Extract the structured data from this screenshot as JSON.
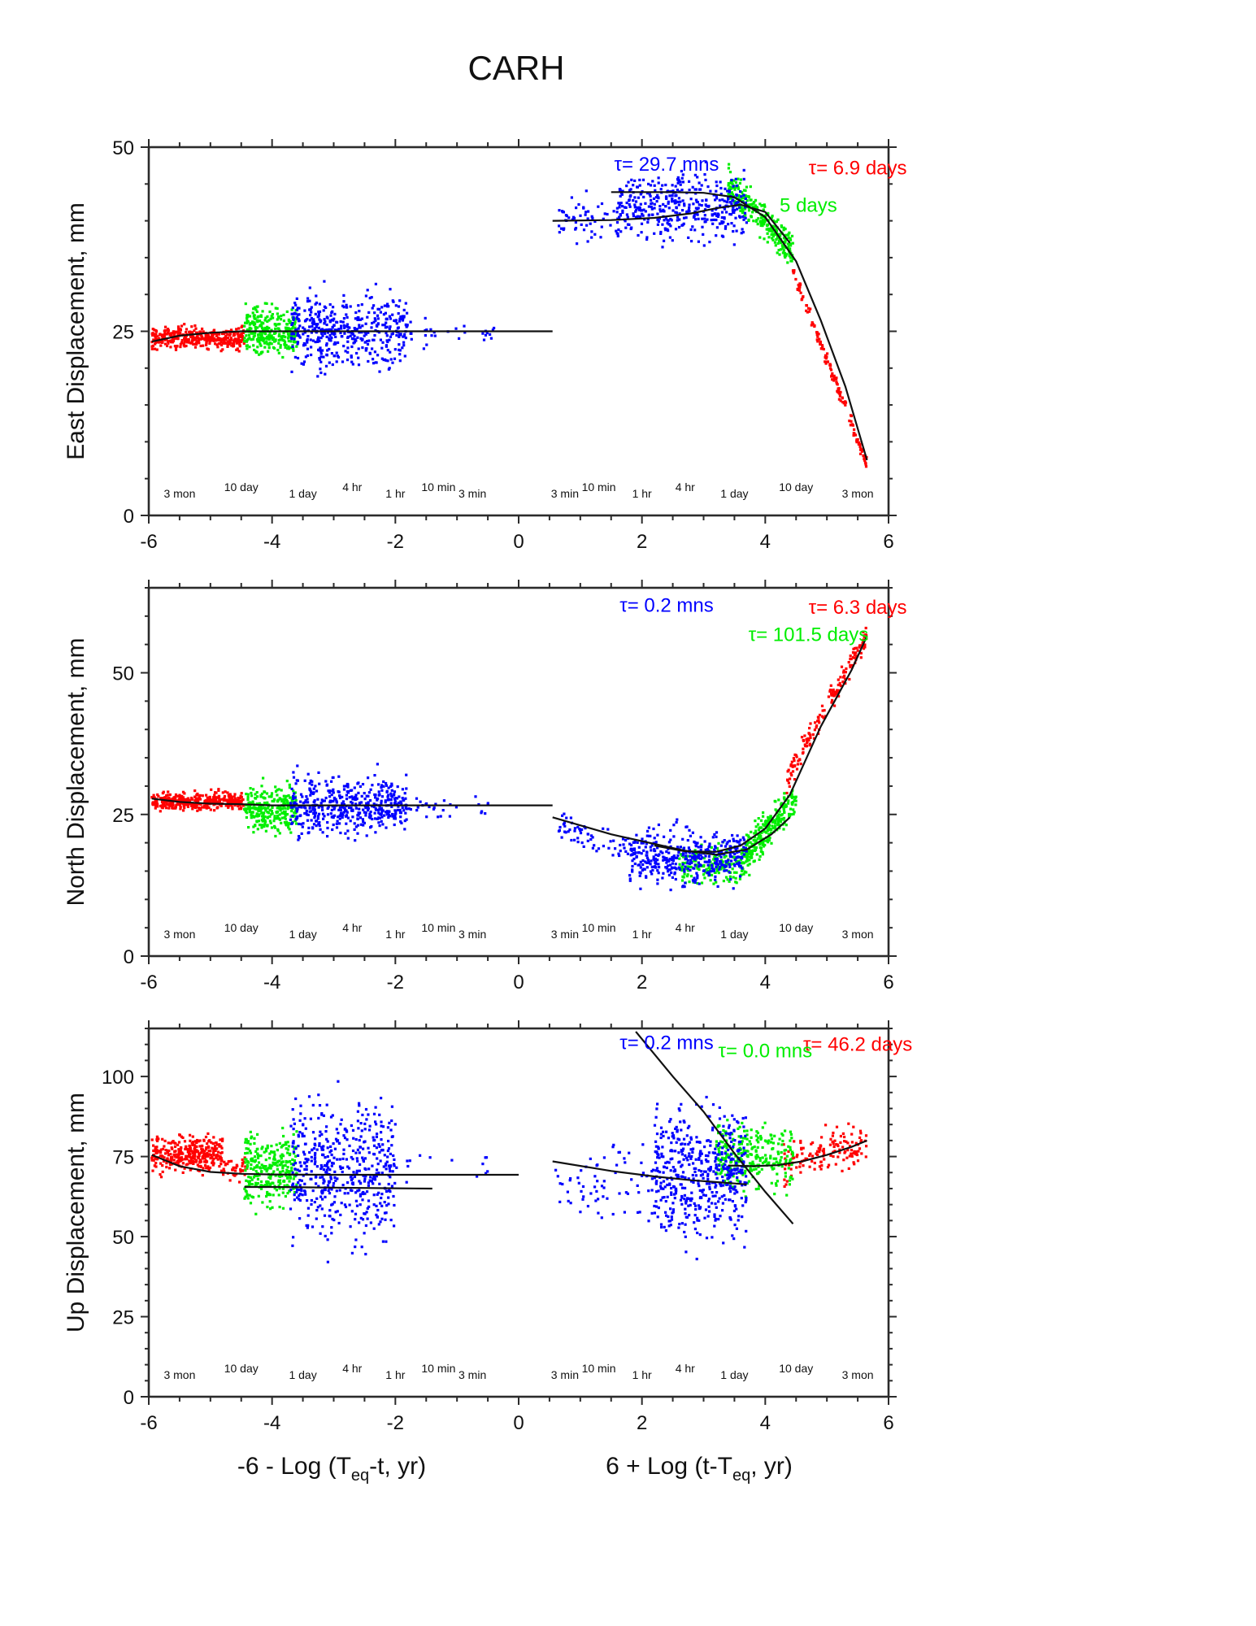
{
  "title": "CARH",
  "xlabels": {
    "left": {
      "main": "-6 - Log (T",
      "sub": "eq",
      "end": "-t, yr)"
    },
    "right": {
      "main": "6 + Log (t-T",
      "sub": "eq",
      "end": ", yr)"
    }
  },
  "colors": {
    "red": "#ff0000",
    "green": "#00ee00",
    "blue": "#0000ff",
    "fit": "#111111",
    "frame": "#2b2b2b"
  },
  "time_labels": [
    {
      "text": "3 mon",
      "x": -5.5,
      "raised": false
    },
    {
      "text": "10 day",
      "x": -4.5,
      "raised": true
    },
    {
      "text": "1 day",
      "x": -3.5,
      "raised": false
    },
    {
      "text": "4 hr",
      "x": -2.7,
      "raised": true
    },
    {
      "text": "1 hr",
      "x": -2.0,
      "raised": false
    },
    {
      "text": "10 min",
      "x": -1.3,
      "raised": true
    },
    {
      "text": "3 min",
      "x": -0.75,
      "raised": false
    },
    {
      "text": "3 min",
      "x": 0.75,
      "raised": false
    },
    {
      "text": "10 min",
      "x": 1.3,
      "raised": true
    },
    {
      "text": "1 hr",
      "x": 2.0,
      "raised": false
    },
    {
      "text": "4 hr",
      "x": 2.7,
      "raised": true
    },
    {
      "text": "1 day",
      "x": 3.5,
      "raised": false
    },
    {
      "text": "10 day",
      "x": 4.5,
      "raised": true
    },
    {
      "text": "3 mon",
      "x": 5.5,
      "raised": false
    }
  ],
  "chart_data": [
    {
      "type": "scatter",
      "ylabel": "East Displacement, mm",
      "xlim": [
        -6,
        6
      ],
      "ylim": [
        0,
        50
      ],
      "xticks": [
        -6,
        -4,
        -2,
        0,
        2,
        4,
        6
      ],
      "yticks": [
        0,
        25,
        50
      ],
      "tau_labels": [
        {
          "text": "τ= 29.7 mns",
          "color": "blue",
          "x": 2.4,
          "y": 46.8
        },
        {
          "text": "τ= 6.9 days",
          "color": "red",
          "x": 5.5,
          "y": 46.3
        },
        {
          "text": "5 days",
          "color": "green",
          "x": 4.7,
          "y": 41.2
        }
      ],
      "series": [
        {
          "color": "red",
          "segments": [
            {
              "x": [
                -5.95,
                -4.45
              ],
              "c": 24.1,
              "spread": 1.4,
              "n": 380
            },
            {
              "x": [
                4.45,
                5.65
              ],
              "line": [
                33,
                7
              ],
              "spread": 0.9,
              "n": 150
            }
          ]
        },
        {
          "color": "green",
          "segments": [
            {
              "x": [
                -4.45,
                -3.6
              ],
              "c": 25,
              "spread": 3.0,
              "n": 280
            },
            {
              "x": [
                3.4,
                4.45
              ],
              "line": [
                45,
                36
              ],
              "spread": 2.4,
              "n": 280
            }
          ]
        },
        {
          "color": "blue",
          "segments": [
            {
              "x": [
                -3.7,
                -1.8
              ],
              "c": 25,
              "spread": 4.6,
              "n": 460
            },
            {
              "x": [
                -1.8,
                -0.4
              ],
              "c": 25,
              "spread": 1.8,
              "n": 28
            },
            {
              "x": [
                0.6,
                1.6
              ],
              "c": 39.8,
              "spread": 3.0,
              "n": 55
            },
            {
              "x": [
                1.6,
                3.7
              ],
              "c": 42,
              "spread": 4.2,
              "n": 420
            }
          ]
        }
      ],
      "fits": [
        {
          "x": [
            -5.95,
            -5.5,
            -5.0,
            -4.5,
            -4.0,
            -3.0,
            0.55
          ],
          "y": [
            23.6,
            24.4,
            24.8,
            25.0,
            25.0,
            25.0,
            25.0
          ]
        },
        {
          "x": [
            0.55,
            1.5,
            2.2,
            2.8,
            3.2,
            3.6,
            4.0,
            4.4
          ],
          "y": [
            40.0,
            40.1,
            40.4,
            41.0,
            41.7,
            42.2,
            41.2,
            37.0
          ]
        },
        {
          "x": [
            1.5,
            2.5,
            3.0,
            3.5,
            4.0,
            4.5,
            4.9,
            5.3,
            5.65
          ],
          "y": [
            43.9,
            43.9,
            43.8,
            43.2,
            40.5,
            34.5,
            26.5,
            17.5,
            7.5
          ]
        }
      ]
    },
    {
      "type": "scatter",
      "ylabel": "North Displacement, mm",
      "xlim": [
        -6,
        6
      ],
      "ylim": [
        0,
        65
      ],
      "xticks": [
        -6,
        -4,
        -2,
        0,
        2,
        4,
        6
      ],
      "yticks": [
        0,
        25,
        50
      ],
      "tau_labels": [
        {
          "text": "τ= 0.2 mns",
          "color": "blue",
          "x": 2.4,
          "y": 60.8
        },
        {
          "text": "τ= 6.3 days",
          "color": "red",
          "x": 5.5,
          "y": 60.4
        },
        {
          "text": "τ= 101.5 days",
          "color": "green",
          "x": 4.7,
          "y": 55.6
        }
      ],
      "series": [
        {
          "color": "red",
          "segments": [
            {
              "x": [
                -5.95,
                -4.45
              ],
              "c": 27.3,
              "spread": 1.5,
              "n": 380
            },
            {
              "x": [
                4.35,
                5.65
              ],
              "line": [
                31,
                57
              ],
              "spread": 2.2,
              "n": 160
            }
          ]
        },
        {
          "color": "green",
          "segments": [
            {
              "x": [
                -4.45,
                -3.6
              ],
              "c": 26,
              "spread": 3.6,
              "n": 280
            },
            {
              "x": [
                2.6,
                3.7
              ],
              "c": 16,
              "spread": 3.6,
              "n": 160
            },
            {
              "x": [
                3.6,
                4.5
              ],
              "line": [
                17,
                28
              ],
              "spread": 3.2,
              "n": 260
            }
          ]
        },
        {
          "color": "blue",
          "segments": [
            {
              "x": [
                -3.7,
                -1.8
              ],
              "c": 26.5,
              "spread": 4.8,
              "n": 460
            },
            {
              "x": [
                -1.8,
                -0.4
              ],
              "c": 26.3,
              "spread": 1.8,
              "n": 28
            },
            {
              "x": [
                0.6,
                1.8
              ],
              "line": [
                23,
                19
              ],
              "spread": 2.6,
              "n": 60
            },
            {
              "x": [
                1.8,
                3.7
              ],
              "c": 17.5,
              "spread": 4.6,
              "n": 420
            }
          ]
        }
      ],
      "fits": [
        {
          "x": [
            -5.95,
            -5.5,
            -5.0,
            -4.5,
            -4.0,
            -3.0,
            0.55
          ],
          "y": [
            27.8,
            27.2,
            26.9,
            26.8,
            26.6,
            26.6,
            26.6
          ]
        },
        {
          "x": [
            0.55,
            1.5,
            2.2,
            2.7,
            3.2,
            3.7,
            4.1,
            4.4
          ],
          "y": [
            24.5,
            21.5,
            19.8,
            18.6,
            17.9,
            18.8,
            21.5,
            24.5
          ]
        },
        {
          "x": [
            2.2,
            2.7,
            3.2,
            3.6,
            4.0,
            4.4,
            4.9,
            5.4,
            5.65
          ],
          "y": [
            19.5,
            18.5,
            18.4,
            19.5,
            22.5,
            28.5,
            40.5,
            50.5,
            56.5
          ]
        }
      ]
    },
    {
      "type": "scatter",
      "ylabel": "Up Displacement, mm",
      "xlim": [
        -6,
        6
      ],
      "ylim": [
        0,
        115
      ],
      "xticks": [
        -6,
        -4,
        -2,
        0,
        2,
        4,
        6
      ],
      "yticks": [
        0,
        25,
        50,
        75,
        100
      ],
      "tau_labels": [
        {
          "text": "τ= 0.2 mns",
          "color": "blue",
          "x": 2.4,
          "y": 108.5
        },
        {
          "text": "τ= 46.2 days",
          "color": "red",
          "x": 5.5,
          "y": 108
        },
        {
          "text": "τ= 0.0 mns",
          "color": "green",
          "x": 4.0,
          "y": 106
        }
      ],
      "series": [
        {
          "color": "red",
          "segments": [
            {
              "x": [
                -5.95,
                -4.8
              ],
              "c": 76,
              "spread": 5.6,
              "n": 330
            },
            {
              "x": [
                -4.8,
                -4.4
              ],
              "c": 71,
              "spread": 3.5,
              "n": 40
            },
            {
              "x": [
                4.3,
                5.65
              ],
              "line": [
                73,
                79
              ],
              "spread": 6.5,
              "n": 140
            }
          ]
        },
        {
          "color": "green",
          "segments": [
            {
              "x": [
                -4.45,
                -3.6
              ],
              "c": 71,
              "spread": 11,
              "n": 280
            },
            {
              "x": [
                3.2,
                4.45
              ],
              "c": 75,
              "spread": 10,
              "n": 280
            }
          ]
        },
        {
          "color": "blue",
          "segments": [
            {
              "x": [
                -3.7,
                -2.0
              ],
              "c": 71,
              "spread": 20,
              "n": 500
            },
            {
              "x": [
                -2.0,
                -0.5
              ],
              "c": 72,
              "spread": 6,
              "n": 14
            },
            {
              "x": [
                0.6,
                2.2
              ],
              "c": 68,
              "spread": 12,
              "n": 70
            },
            {
              "x": [
                2.2,
                3.7
              ],
              "c": 70,
              "spread": 20,
              "n": 500
            }
          ]
        }
      ],
      "fits": [
        {
          "x": [
            -5.95,
            -5.5,
            -5.0,
            -4.5,
            -4.0,
            -3.0,
            0.0
          ],
          "y": [
            75.5,
            72.0,
            70.2,
            69.6,
            69.4,
            69.3,
            69.3
          ]
        },
        {
          "x": [
            -4.45,
            -4.0,
            -3.0,
            -2.0,
            -1.4
          ],
          "y": [
            65.5,
            65.5,
            65.3,
            65.1,
            65.0
          ]
        },
        {
          "x": [
            0.55,
            1.5,
            2.2,
            2.8,
            3.3,
            3.7
          ],
          "y": [
            73.5,
            70.5,
            68.8,
            67.6,
            66.9,
            66.3
          ]
        },
        {
          "x": [
            3.4,
            3.8,
            4.2,
            4.6,
            5.0,
            5.4,
            5.65
          ],
          "y": [
            72.2,
            72.0,
            72.3,
            73.5,
            75.5,
            78.0,
            80.0
          ]
        },
        {
          "x": [
            1.9,
            2.5,
            3.0,
            3.5,
            4.0,
            4.45
          ],
          "y": [
            114,
            100,
            89,
            76,
            64,
            54
          ]
        }
      ]
    }
  ]
}
